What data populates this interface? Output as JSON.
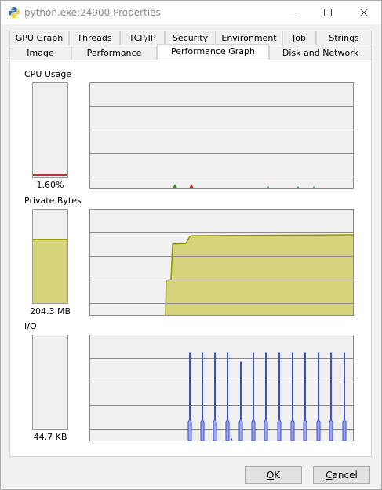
{
  "window": {
    "title": "python.exe:24900 Properties",
    "controls": {
      "minimize": "minimize-icon",
      "maximize": "maximize-icon",
      "close": "close-icon"
    }
  },
  "tabs_row1": [
    "GPU Graph",
    "Threads",
    "TCP/IP",
    "Security",
    "Environment",
    "Job",
    "Strings"
  ],
  "tabs_row2": [
    "Image",
    "Performance",
    "Performance Graph",
    "Disk and Network"
  ],
  "active_tab": "Performance Graph",
  "sections": {
    "cpu": {
      "label": "CPU Usage",
      "value": "1.60%",
      "level": 0.016,
      "line_color": "#c03030"
    },
    "private": {
      "label": "Private Bytes",
      "value": "204.3 MB",
      "level": 0.69,
      "fill_color": "#d5d47c",
      "line_color": "#989800"
    },
    "io": {
      "label": "I/O",
      "value": "44.7  KB",
      "level": 0.0
    }
  },
  "graphs": {
    "cpu_markers": {
      "green": "#2a9a2a",
      "red": "#c03030"
    },
    "io_color": "#3a4fd8",
    "io_fill": "#9aa6ee"
  },
  "buttons": {
    "ok": {
      "label": "OK",
      "mnemonic": "O"
    },
    "cancel": {
      "label": "Cancel",
      "mnemonic": "C"
    }
  }
}
